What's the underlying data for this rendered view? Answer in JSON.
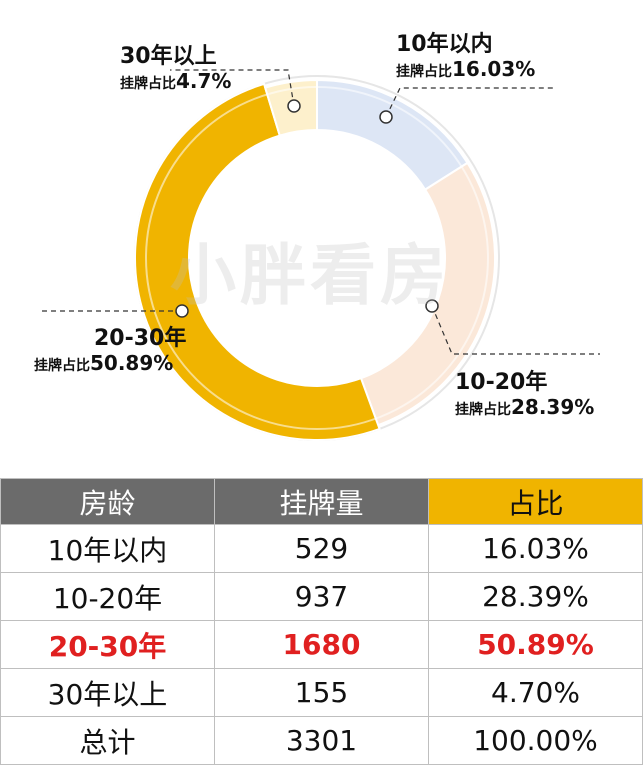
{
  "chart_data": {
    "type": "pie",
    "title": "",
    "watermark": "小胖看房",
    "slices": [
      {
        "label": "10年以内",
        "share_prefix": "挂牌占比",
        "share": "16.03%",
        "value": 16.03,
        "color": "#dde6f5"
      },
      {
        "label": "10-20年",
        "share_prefix": "挂牌占比",
        "share": "28.39%",
        "value": 28.39,
        "color": "#fbe8d9"
      },
      {
        "label": "20-30年",
        "share_prefix": "挂牌占比",
        "share": "50.89%",
        "value": 50.89,
        "color": "#f0b400"
      },
      {
        "label": "30年以上",
        "share_prefix": "挂牌占比",
        "share": "4.7%",
        "value": 4.7,
        "color": "#fdf0cc"
      }
    ]
  },
  "table": {
    "headers": [
      "房龄",
      "挂牌量",
      "占比"
    ],
    "rows": [
      [
        "10年以内",
        "529",
        "16.03%"
      ],
      [
        "10-20年",
        "937",
        "28.39%"
      ],
      [
        "20-30年",
        "1680",
        "50.89%"
      ],
      [
        "30年以上",
        "155",
        "4.70%"
      ],
      [
        "总计",
        "3301",
        "100.00%"
      ]
    ],
    "highlight_row": 2
  },
  "colors": {
    "header_gray": "#6b6b6b",
    "header_accent": "#f0b400",
    "highlight_text": "#e02020"
  }
}
